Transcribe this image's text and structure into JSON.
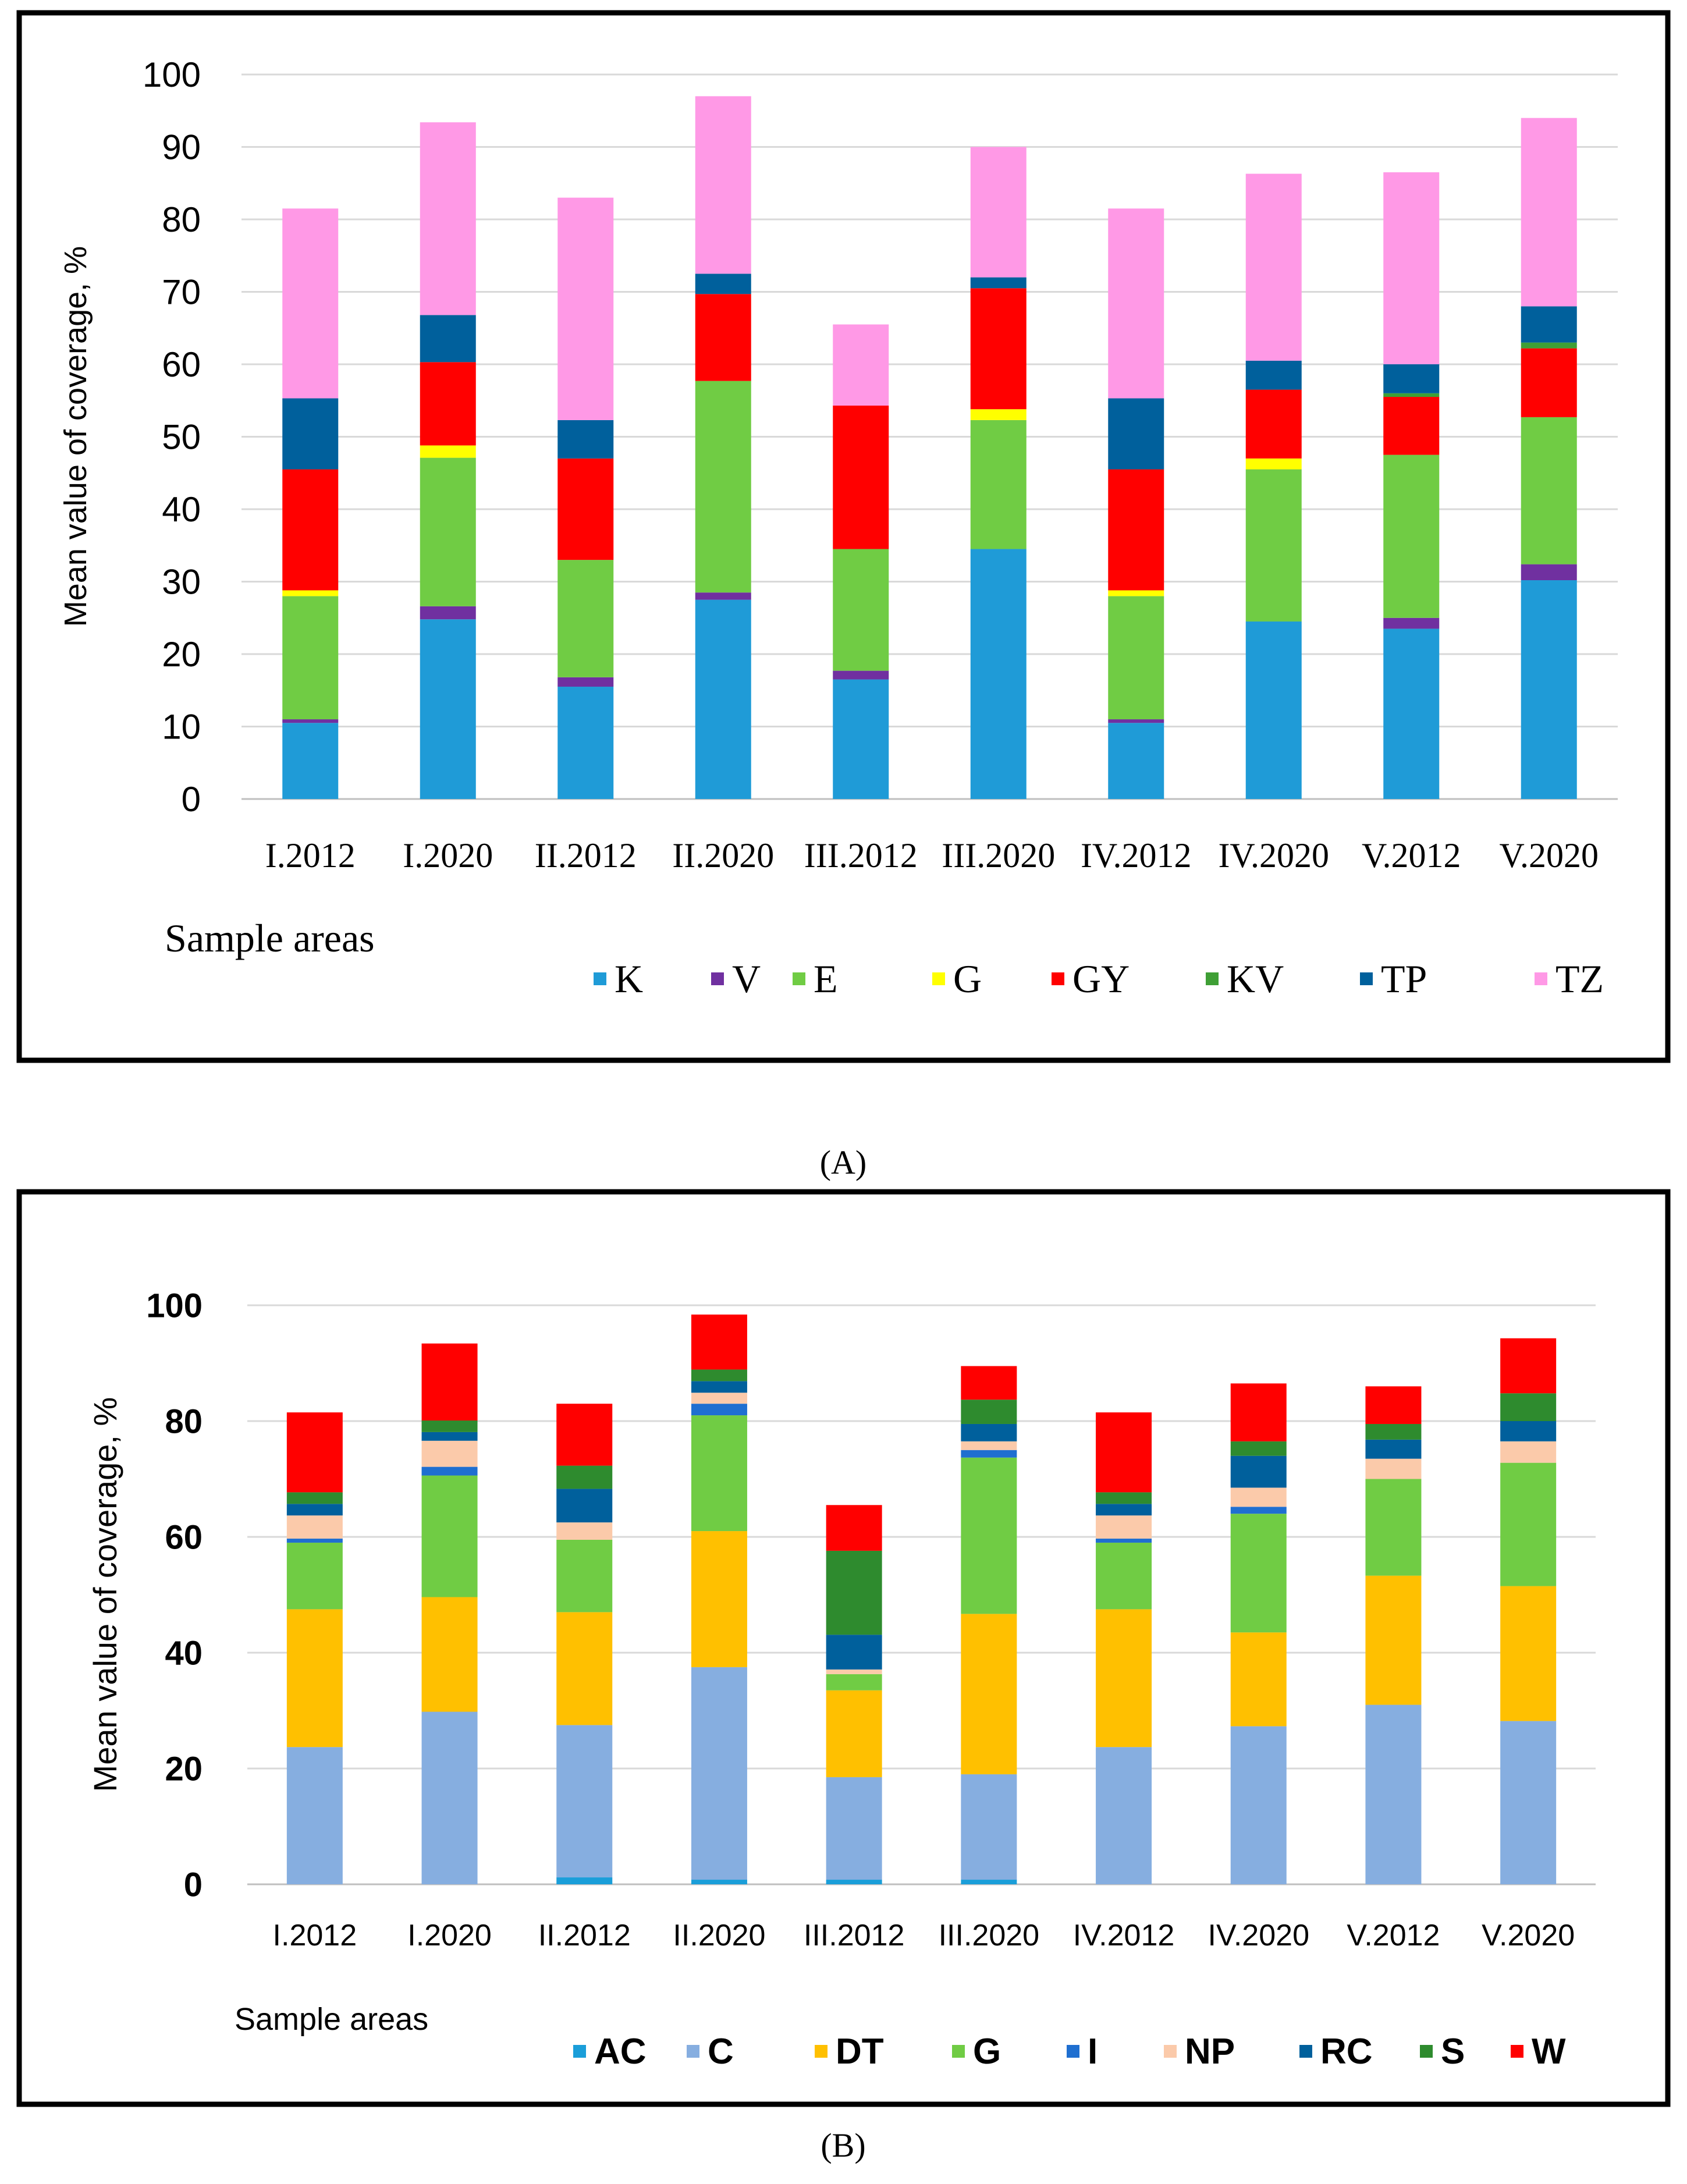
{
  "chart_data": [
    {
      "panel_label": "(A)",
      "type": "bar",
      "stacked": true,
      "xlabel": "Sample areas",
      "ylabel": "Mean value of coverage, %",
      "ylim": [
        0,
        100
      ],
      "yticks": [
        "0",
        "10",
        "20",
        "30",
        "40",
        "50",
        "60",
        "70",
        "80",
        "90",
        "100"
      ],
      "grid": true,
      "legend_position": "bottom-right",
      "categories": [
        "I.2012",
        "I.2020",
        "II.2012",
        "II.2020",
        "III.2012",
        "III.2020",
        "IV.2012",
        "IV.2020",
        "V.2012",
        "V.2020"
      ],
      "series": [
        {
          "name": "K",
          "color": "#1f9bd7",
          "values": [
            10.5,
            24.8,
            15.5,
            27.5,
            16.5,
            34.5,
            10.5,
            24.5,
            23.5,
            30.2
          ]
        },
        {
          "name": "V",
          "color": "#7030a0",
          "values": [
            0.5,
            1.8,
            1.3,
            1.0,
            1.2,
            0,
            0.5,
            0,
            1.5,
            2.2
          ]
        },
        {
          "name": "E",
          "color": "#70cc44",
          "values": [
            17.0,
            20.5,
            16.2,
            29.2,
            16.8,
            17.8,
            17.0,
            21.0,
            22.5,
            20.3
          ]
        },
        {
          "name": "G",
          "color": "#ffff00",
          "values": [
            0.8,
            1.7,
            0,
            0,
            0,
            1.5,
            0.8,
            1.5,
            0,
            0
          ]
        },
        {
          "name": "GY",
          "color": "#ff0000",
          "values": [
            16.7,
            11.5,
            14.0,
            12.0,
            19.8,
            16.7,
            16.7,
            9.5,
            8.0,
            9.5
          ]
        },
        {
          "name": "KV",
          "color": "#3f9f35",
          "values": [
            0,
            0,
            0,
            0,
            0,
            0,
            0,
            0,
            0.5,
            0.8
          ]
        },
        {
          "name": "TP",
          "color": "#00609c",
          "values": [
            9.8,
            6.5,
            5.3,
            2.8,
            0,
            1.5,
            9.8,
            4.0,
            4.0,
            5.0
          ]
        },
        {
          "name": "TZ",
          "color": "#ff99e6",
          "values": [
            26.2,
            26.6,
            30.7,
            24.5,
            11.2,
            18.0,
            26.2,
            25.8,
            26.5,
            26.0
          ]
        }
      ]
    },
    {
      "panel_label": "(B)",
      "type": "bar",
      "stacked": true,
      "xlabel": "Sample areas",
      "ylabel": "Mean value of coverage, %",
      "ylim": [
        0,
        100
      ],
      "yticks": [
        "0",
        "20",
        "40",
        "60",
        "80",
        "100"
      ],
      "grid": true,
      "legend_position": "bottom-right",
      "categories": [
        "I.2012",
        "I.2020",
        "II.2012",
        "II.2020",
        "III.2012",
        "III.2020",
        "IV.2012",
        "IV.2020",
        "V.2012",
        "V.2020"
      ],
      "series": [
        {
          "name": "AC",
          "color": "#1a9ed9",
          "values": [
            0,
            0,
            1.2,
            0.8,
            0.8,
            0.8,
            0,
            0,
            0,
            0
          ]
        },
        {
          "name": "C",
          "color": "#86aee0",
          "values": [
            23.7,
            29.8,
            26.3,
            36.7,
            17.7,
            18.2,
            23.7,
            27.3,
            31.0,
            28.2
          ]
        },
        {
          "name": "DT",
          "color": "#ffc000",
          "values": [
            23.8,
            19.8,
            19.5,
            23.5,
            15.0,
            27.7,
            23.8,
            16.2,
            22.3,
            23.3
          ]
        },
        {
          "name": "G",
          "color": "#70cc44",
          "values": [
            11.5,
            21.0,
            12.5,
            20.0,
            2.8,
            27.0,
            11.5,
            20.5,
            16.7,
            21.3
          ]
        },
        {
          "name": "I",
          "color": "#1f6fd0",
          "values": [
            0.7,
            1.5,
            0,
            2.0,
            0,
            1.3,
            0.7,
            1.2,
            0,
            0
          ]
        },
        {
          "name": "NP",
          "color": "#fbcaaa",
          "values": [
            4.0,
            4.5,
            3.0,
            1.9,
            0.8,
            1.5,
            4.0,
            3.3,
            3.5,
            3.7
          ]
        },
        {
          "name": "RC",
          "color": "#00609c",
          "values": [
            2.0,
            1.5,
            5.8,
            2.0,
            6.0,
            3.0,
            2.0,
            5.5,
            3.3,
            3.5
          ]
        },
        {
          "name": "S",
          "color": "#2e8b2e",
          "values": [
            2.0,
            2.0,
            4.0,
            2.0,
            14.5,
            4.2,
            2.0,
            2.5,
            2.7,
            4.8
          ]
        },
        {
          "name": "W",
          "color": "#ff0000",
          "values": [
            13.8,
            13.3,
            10.7,
            9.5,
            7.9,
            5.8,
            13.8,
            10.0,
            6.5,
            9.5
          ]
        }
      ]
    }
  ]
}
